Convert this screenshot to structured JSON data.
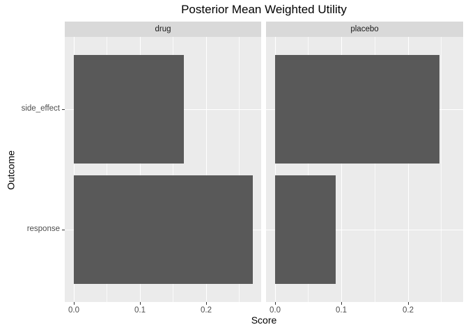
{
  "title": "Posterior Mean Weighted Utility",
  "axes": {
    "x_label": "Score",
    "y_label": "Outcome",
    "x_tick_labels": [
      "0.0",
      "0.1",
      "0.2"
    ]
  },
  "chart_data": {
    "type": "bar",
    "orientation": "horizontal",
    "title": "Posterior Mean Weighted Utility",
    "xlabel": "Score",
    "ylabel": "Outcome",
    "categories": [
      "side_effect",
      "response"
    ],
    "facets": [
      {
        "label": "drug",
        "values": [
          0.166,
          0.27
        ]
      },
      {
        "label": "placebo",
        "values": [
          0.247,
          0.091
        ]
      }
    ],
    "x_ticks": [
      0.0,
      0.1,
      0.2
    ],
    "x_minor_ticks": [
      0.05,
      0.15,
      0.25
    ],
    "xlim": [
      -0.0132,
      0.2832
    ],
    "grid": true,
    "legend": "none"
  },
  "colors": {
    "background": "#FFFFFF",
    "panel_bg": "#EBEBEB",
    "strip_bg": "#D9D9D9",
    "bar_fill": "#595959",
    "grid_major": "#FFFFFF",
    "grid_minor": "rgba(255,255,255,0.75)",
    "strip_text": "#1A1A1A",
    "tick_text": "#4D4D4D",
    "tick_mark": "#333333"
  }
}
